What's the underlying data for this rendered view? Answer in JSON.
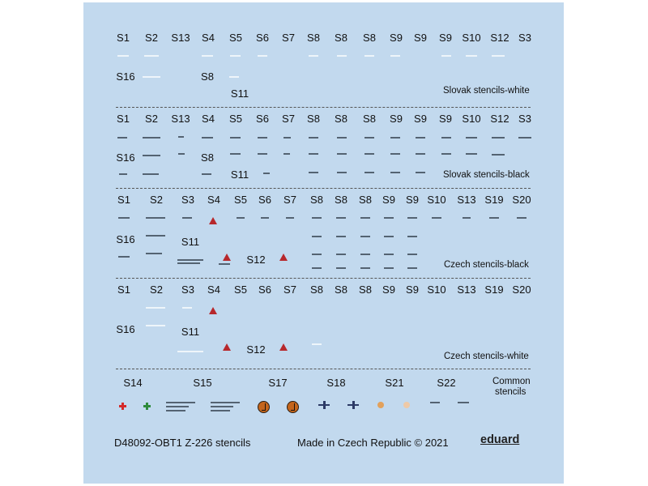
{
  "sections": {
    "slovak_white": {
      "title": "Slovak stencils-white",
      "row1": [
        "S1",
        "S2",
        "S13",
        "S4",
        "S5",
        "S6",
        "S7",
        "S8",
        "S8",
        "S8",
        "S9",
        "S9",
        "S9",
        "S10",
        "S12",
        "S3"
      ],
      "row2": [
        "S16",
        "S8"
      ],
      "row3": [
        "S11"
      ]
    },
    "slovak_black": {
      "title": "Slovak stencils-black",
      "row1": [
        "S1",
        "S2",
        "S13",
        "S4",
        "S5",
        "S6",
        "S7",
        "S8",
        "S8",
        "S8",
        "S9",
        "S9",
        "S9",
        "S10",
        "S12",
        "S3"
      ],
      "row2": [
        "S16",
        "S8"
      ],
      "row3": [
        "S11"
      ]
    },
    "czech_black": {
      "title": "Czech stencils-black",
      "row1": [
        "S1",
        "S2",
        "S3",
        "S4",
        "S5",
        "S6",
        "S7",
        "S8",
        "S8",
        "S8",
        "S9",
        "S9",
        "S10",
        "S13",
        "S19",
        "S20"
      ],
      "row2": [
        "S16",
        "S11"
      ],
      "row3": [
        "S12"
      ]
    },
    "czech_white": {
      "title": "Czech stencils-white",
      "row1": [
        "S1",
        "S2",
        "S3",
        "S4",
        "S5",
        "S6",
        "S7",
        "S8",
        "S8",
        "S8",
        "S9",
        "S9",
        "S10",
        "S13",
        "S19",
        "S20"
      ],
      "row2": [
        "S16",
        "S11"
      ],
      "row3": [
        "S12"
      ]
    },
    "common": {
      "title_line1": "Common",
      "title_line2": "stencils",
      "labels": [
        "S14",
        "S15",
        "S17",
        "S18",
        "S21",
        "S22"
      ]
    }
  },
  "footer": {
    "code": "D48092-OBT1 Z-226 stencils",
    "made_in": "Made in Czech Republic © 2021",
    "brand": "eduard"
  },
  "colors": {
    "sheet": "#c2d9ee",
    "red_marker": "#b7282c",
    "roundel": "#c4651c"
  }
}
